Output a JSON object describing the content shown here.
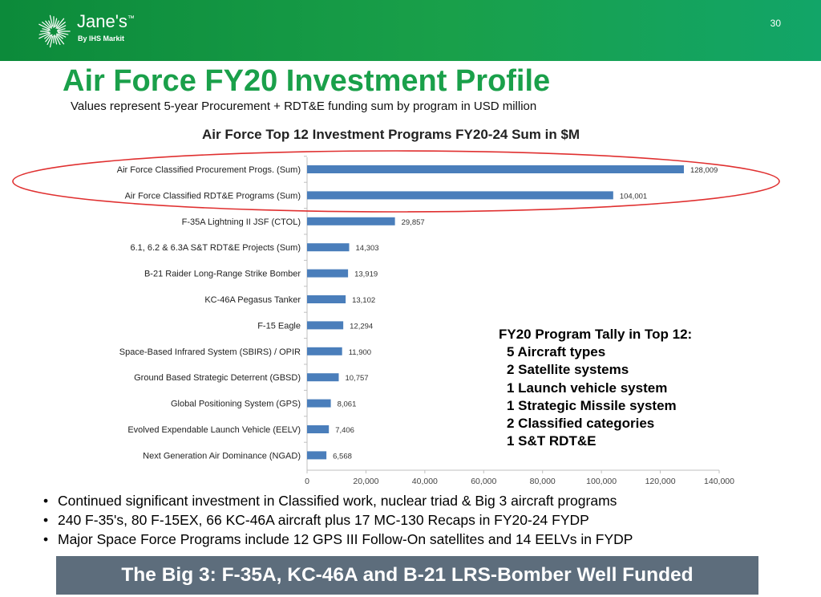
{
  "header": {
    "brand": "Jane's",
    "trademark": "™",
    "brand_sub": "By IHS Markit",
    "page_number": "30",
    "colors": {
      "band": "#1aa04a",
      "title": "#1aa04a"
    }
  },
  "title": "Air Force FY20 Investment Profile",
  "subtitle": "Values represent 5-year Procurement + RDT&E funding sum by program in USD million",
  "chart_data": {
    "type": "bar",
    "orientation": "horizontal",
    "title": "Air Force Top 12 Investment Programs FY20-24 Sum in $M",
    "categories": [
      "Air Force Classified Procurement Progs. (Sum)",
      "Air Force Classified RDT&E Programs (Sum)",
      "F-35A Lightning II JSF (CTOL)",
      "6.1, 6.2 & 6.3A S&T RDT&E Projects (Sum)",
      "B-21 Raider Long-Range Strike Bomber",
      "KC-46A Pegasus Tanker",
      "F-15 Eagle",
      "Space-Based Infrared System (SBIRS) / OPIR",
      "Ground Based Strategic Deterrent (GBSD)",
      "Global Positioning System (GPS)",
      "Evolved Expendable Launch Vehicle (EELV)",
      "Next Generation Air Dominance (NGAD)"
    ],
    "values": [
      128009,
      104001,
      29857,
      14303,
      13919,
      13102,
      12294,
      11900,
      10757,
      8061,
      7406,
      6568
    ],
    "value_labels": [
      "128,009",
      "104,001",
      "29,857",
      "14,303",
      "13,919",
      "13,102",
      "12,294",
      "11,900",
      "10,757",
      "8,061",
      "7,406",
      "6,568"
    ],
    "xlim": [
      0,
      140000
    ],
    "xticks": [
      0,
      20000,
      40000,
      60000,
      80000,
      100000,
      120000,
      140000
    ],
    "xtick_labels": [
      "0",
      "20,000",
      "40,000",
      "60,000",
      "80,000",
      "100,000",
      "120,000",
      "140,000"
    ],
    "grid": false,
    "bar_color": "#4a7ebb",
    "highlight": {
      "shape": "ellipse",
      "color": "#e03030",
      "encloses": [
        "Air Force Classified Procurement Progs. (Sum)",
        "Air Force Classified RDT&E Programs (Sum)"
      ]
    }
  },
  "tally": {
    "heading": "FY20 Program Tally in Top 12:",
    "items": [
      "5 Aircraft types",
      "2 Satellite systems",
      "1 Launch vehicle system",
      "1 Strategic Missile system",
      "2 Classified categories",
      "1 S&T RDT&E"
    ]
  },
  "bullets": [
    "Continued significant investment in Classified work, nuclear triad & Big 3 aircraft programs",
    "240 F-35's, 80 F-15EX, 66 KC-46A aircraft plus 17 MC-130 Recaps in FY20-24 FYDP",
    "Major Space Force Programs include 12 GPS III Follow-On satellites and 14 EELVs in FYDP"
  ],
  "banner": "The Big 3: F-35A, KC-46A and B-21 LRS-Bomber Well Funded",
  "icons": {
    "logo": "janes-burst-logo-icon"
  }
}
